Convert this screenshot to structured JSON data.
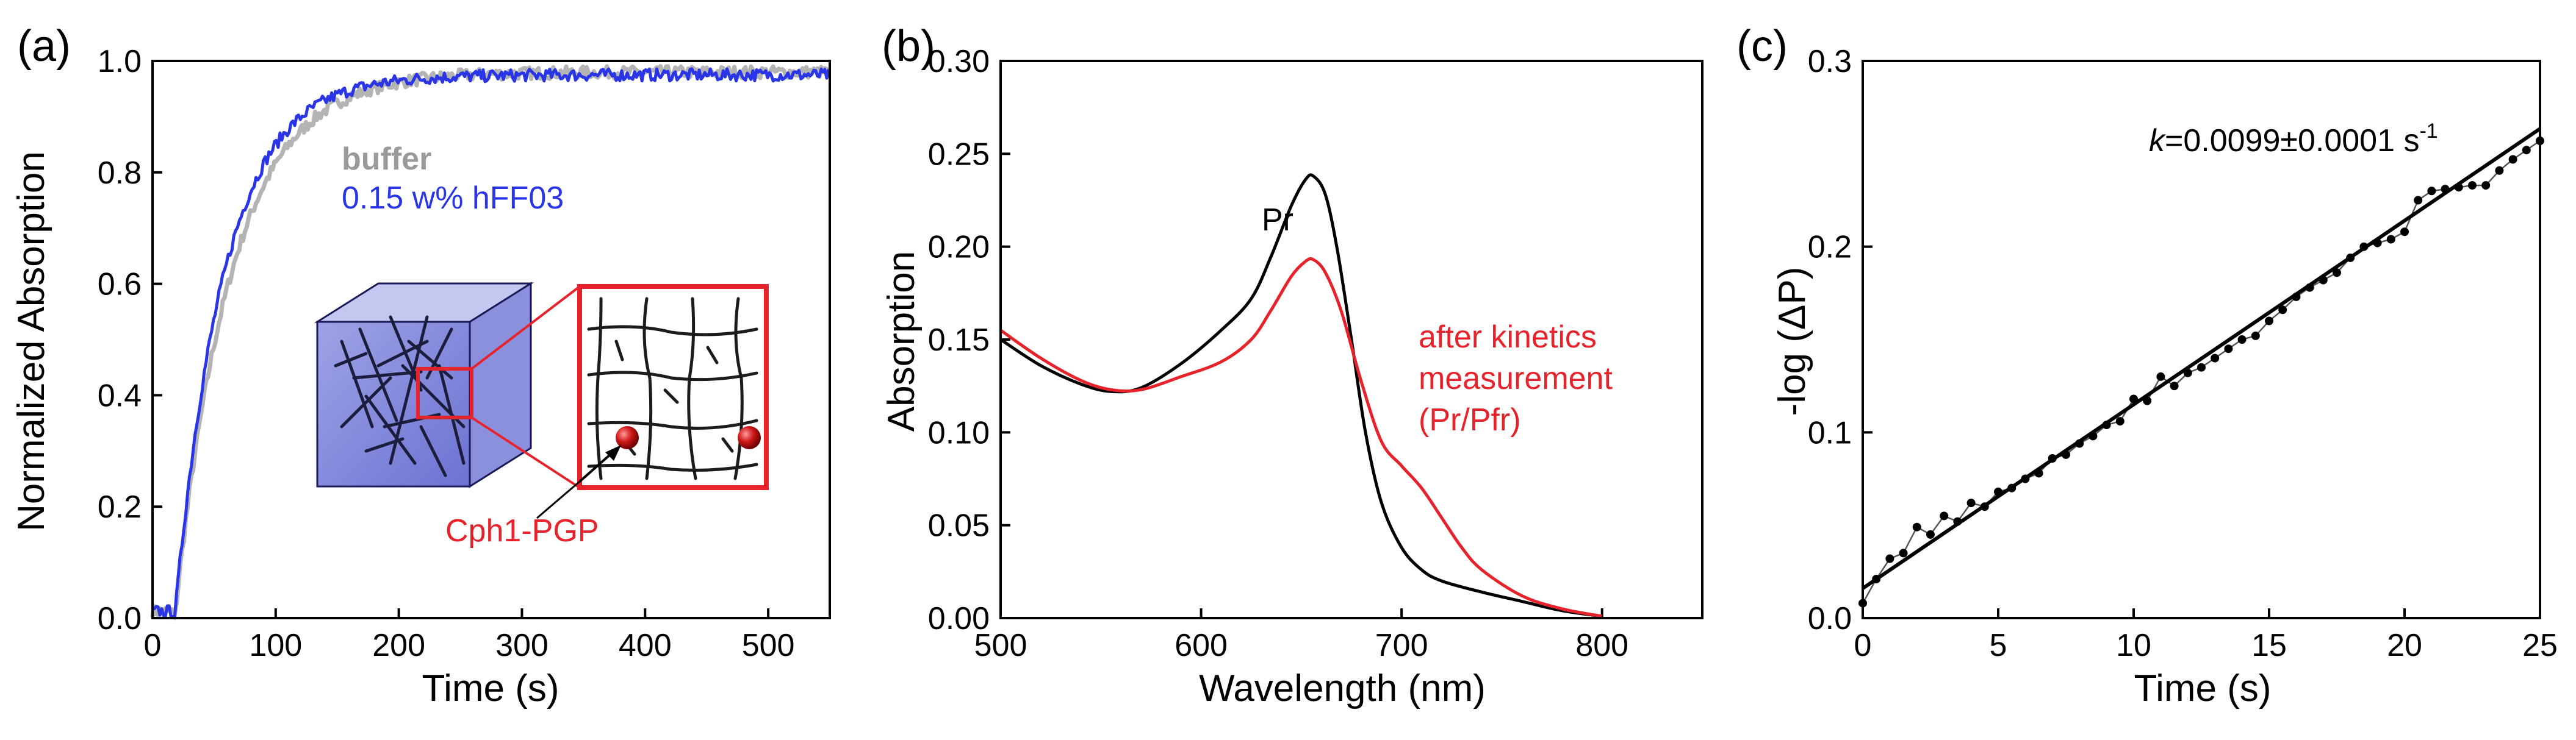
{
  "figure": {
    "panels": [
      "(a)",
      "(b)",
      "(c)"
    ]
  },
  "chart_data": [
    {
      "type": "line",
      "panel_label": "(a)",
      "xlabel": "Time (s)",
      "ylabel": "Normalized Absorption",
      "xlim": [
        0,
        550
      ],
      "ylim": [
        0,
        1.0
      ],
      "xticks": [
        0,
        100,
        200,
        300,
        400,
        500
      ],
      "yticks": [
        0.0,
        0.2,
        0.4,
        0.6,
        0.8,
        1.0
      ],
      "ytick_labels": [
        "0.0",
        "0.2",
        "0.4",
        "0.6",
        "0.8",
        "1.0"
      ],
      "series": [
        {
          "name": "buffer",
          "color": "#b4b4b4",
          "model": {
            "t0": 18,
            "tau": 46,
            "plateau": 0.98
          }
        },
        {
          "name": "0.15 w% hFF03",
          "color": "#2a35e8",
          "model": {
            "t0": 18,
            "tau": 40,
            "plateau": 0.975
          }
        }
      ],
      "legend": [
        {
          "text": "buffer",
          "color": "#9a9a9a"
        },
        {
          "text": "0.15 w% hFF03",
          "color": "#2a35e8"
        }
      ],
      "inset_label": "Cph1-PGP",
      "inset_label_color": "#e8222a"
    },
    {
      "type": "line",
      "panel_label": "(b)",
      "xlabel": "Wavelength (nm)",
      "ylabel": "Absorption",
      "xlim": [
        500,
        850
      ],
      "ylim": [
        0,
        0.3
      ],
      "xticks": [
        500,
        600,
        700,
        800
      ],
      "yticks": [
        0.0,
        0.05,
        0.1,
        0.15,
        0.2,
        0.25,
        0.3
      ],
      "ytick_labels": [
        "0.00",
        "0.05",
        "0.10",
        "0.15",
        "0.20",
        "0.25",
        "0.30"
      ],
      "series": [
        {
          "name": "Pr",
          "color": "#000000",
          "x": [
            500,
            520,
            540,
            555,
            570,
            590,
            610,
            625,
            635,
            645,
            652,
            656,
            662,
            668,
            675,
            682,
            690,
            700,
            710,
            720,
            740,
            760,
            780,
            800
          ],
          "y": [
            0.15,
            0.136,
            0.126,
            0.122,
            0.124,
            0.137,
            0.155,
            0.172,
            0.195,
            0.222,
            0.236,
            0.238,
            0.228,
            0.198,
            0.15,
            0.1,
            0.062,
            0.038,
            0.026,
            0.02,
            0.014,
            0.009,
            0.004,
            0.001
          ]
        },
        {
          "name": "after kinetics measurement (Pr/Pfr)",
          "color": "#e8222a",
          "x": [
            500,
            520,
            540,
            555,
            570,
            590,
            610,
            625,
            635,
            645,
            652,
            656,
            662,
            670,
            680,
            690,
            700,
            710,
            720,
            730,
            740,
            760,
            780,
            800
          ],
          "y": [
            0.155,
            0.14,
            0.128,
            0.123,
            0.123,
            0.13,
            0.138,
            0.15,
            0.166,
            0.184,
            0.192,
            0.193,
            0.186,
            0.165,
            0.127,
            0.095,
            0.082,
            0.07,
            0.054,
            0.038,
            0.026,
            0.012,
            0.005,
            0.001
          ]
        }
      ],
      "annotations": [
        {
          "text": "Pr",
          "color": "#000000"
        },
        {
          "text": "after kinetics",
          "color": "#e8222a"
        },
        {
          "text": "measurement",
          "color": "#e8222a"
        },
        {
          "text": "(Pr/Pfr)",
          "color": "#e8222a"
        }
      ]
    },
    {
      "type": "scatter",
      "panel_label": "(c)",
      "xlabel": "Time (s)",
      "ylabel": "-log (ΔP)",
      "xlim": [
        0,
        25
      ],
      "ylim": [
        0,
        0.3
      ],
      "xticks": [
        0,
        5,
        10,
        15,
        20,
        25
      ],
      "yticks": [
        0.0,
        0.1,
        0.2,
        0.3
      ],
      "ytick_labels": [
        "0.0",
        "0.1",
        "0.2",
        "0.3"
      ],
      "annotation": {
        "k_symbol": "k",
        "k_value": "=0.0099±0.0001 s",
        "unit_sup": "-1"
      },
      "fit": {
        "slope": 0.0099,
        "intercept": 0.016,
        "x_range": [
          0,
          25
        ]
      },
      "points": {
        "x": [
          0,
          0.5,
          1,
          1.5,
          2,
          2.5,
          3,
          3.5,
          4,
          4.5,
          5,
          5.5,
          6,
          6.5,
          7,
          7.5,
          8,
          8.5,
          9,
          9.5,
          10,
          10.5,
          11,
          11.5,
          12,
          12.5,
          13,
          13.5,
          14,
          14.5,
          15,
          15.5,
          16,
          16.5,
          17,
          17.5,
          18,
          18.5,
          19,
          19.5,
          20,
          20.5,
          21,
          21.5,
          22,
          22.5,
          23,
          23.5,
          24,
          24.5,
          25
        ],
        "y": [
          0.008,
          0.021,
          0.032,
          0.035,
          0.049,
          0.045,
          0.055,
          0.052,
          0.062,
          0.06,
          0.068,
          0.07,
          0.075,
          0.078,
          0.086,
          0.088,
          0.094,
          0.098,
          0.104,
          0.106,
          0.118,
          0.117,
          0.13,
          0.125,
          0.132,
          0.135,
          0.14,
          0.145,
          0.15,
          0.152,
          0.16,
          0.166,
          0.173,
          0.178,
          0.182,
          0.186,
          0.194,
          0.2,
          0.202,
          0.204,
          0.208,
          0.225,
          0.23,
          0.231,
          0.232,
          0.233,
          0.233,
          0.241,
          0.247,
          0.252,
          0.257
        ]
      }
    }
  ]
}
